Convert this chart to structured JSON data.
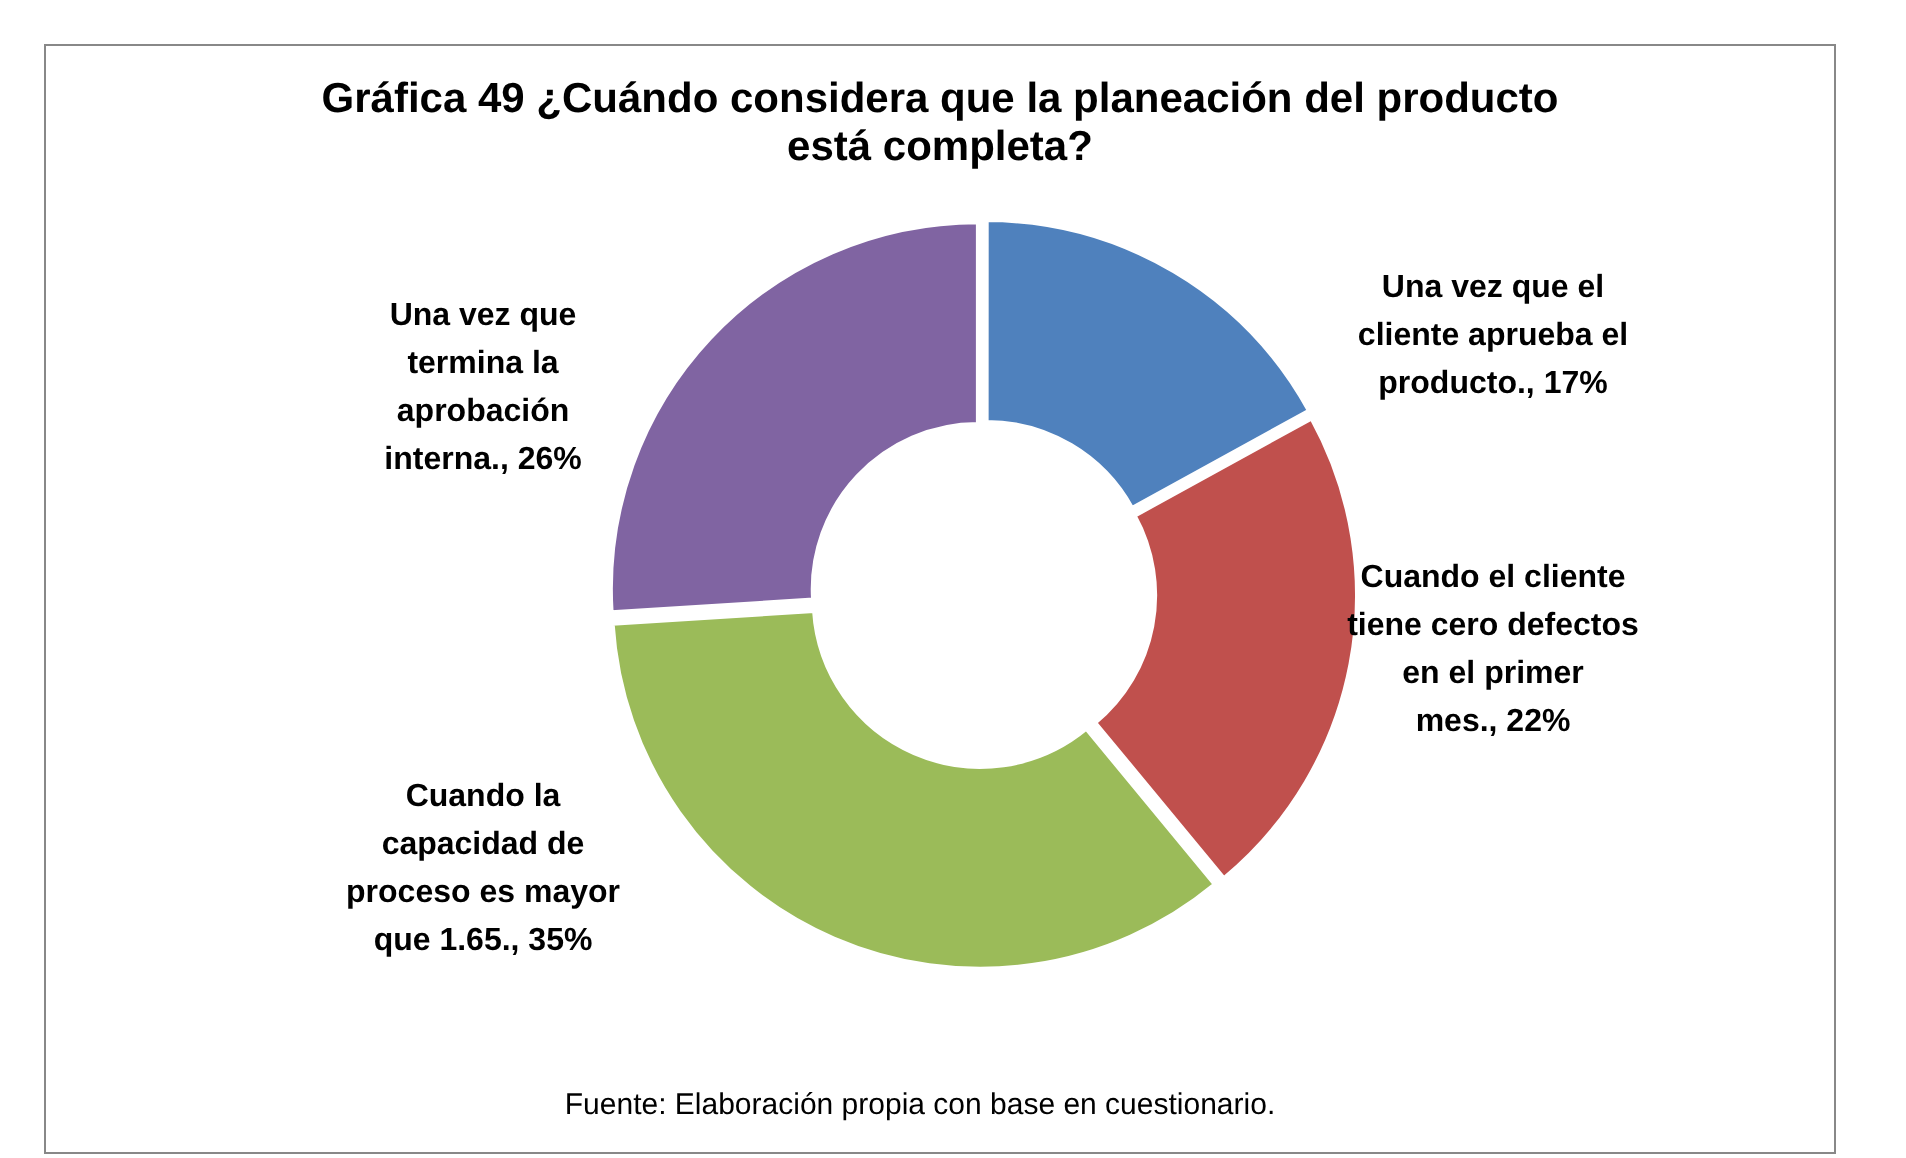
{
  "chart_data": {
    "type": "donut",
    "title": "Gráfica 49 ¿Cuándo considera que la planeación del producto está completa?",
    "categories": [
      "Una vez que el cliente aprueba el producto.",
      "Cuando el cliente tiene cero defectos en el primer mes.",
      "Cuando la capacidad de proceso es mayor que 1.65.",
      "Una vez que termina la aprobación interna."
    ],
    "values": [
      17,
      22,
      35,
      26
    ],
    "value_labels": [
      "17%",
      "22%",
      "35%",
      "26%"
    ],
    "colors": [
      "#4f81bd",
      "#c0504d",
      "#9bbb59",
      "#8064a2"
    ],
    "data_labels": true,
    "legend": false,
    "annotations": [
      "Fuente: Elaboración propia con base en cuestionario."
    ]
  }
}
